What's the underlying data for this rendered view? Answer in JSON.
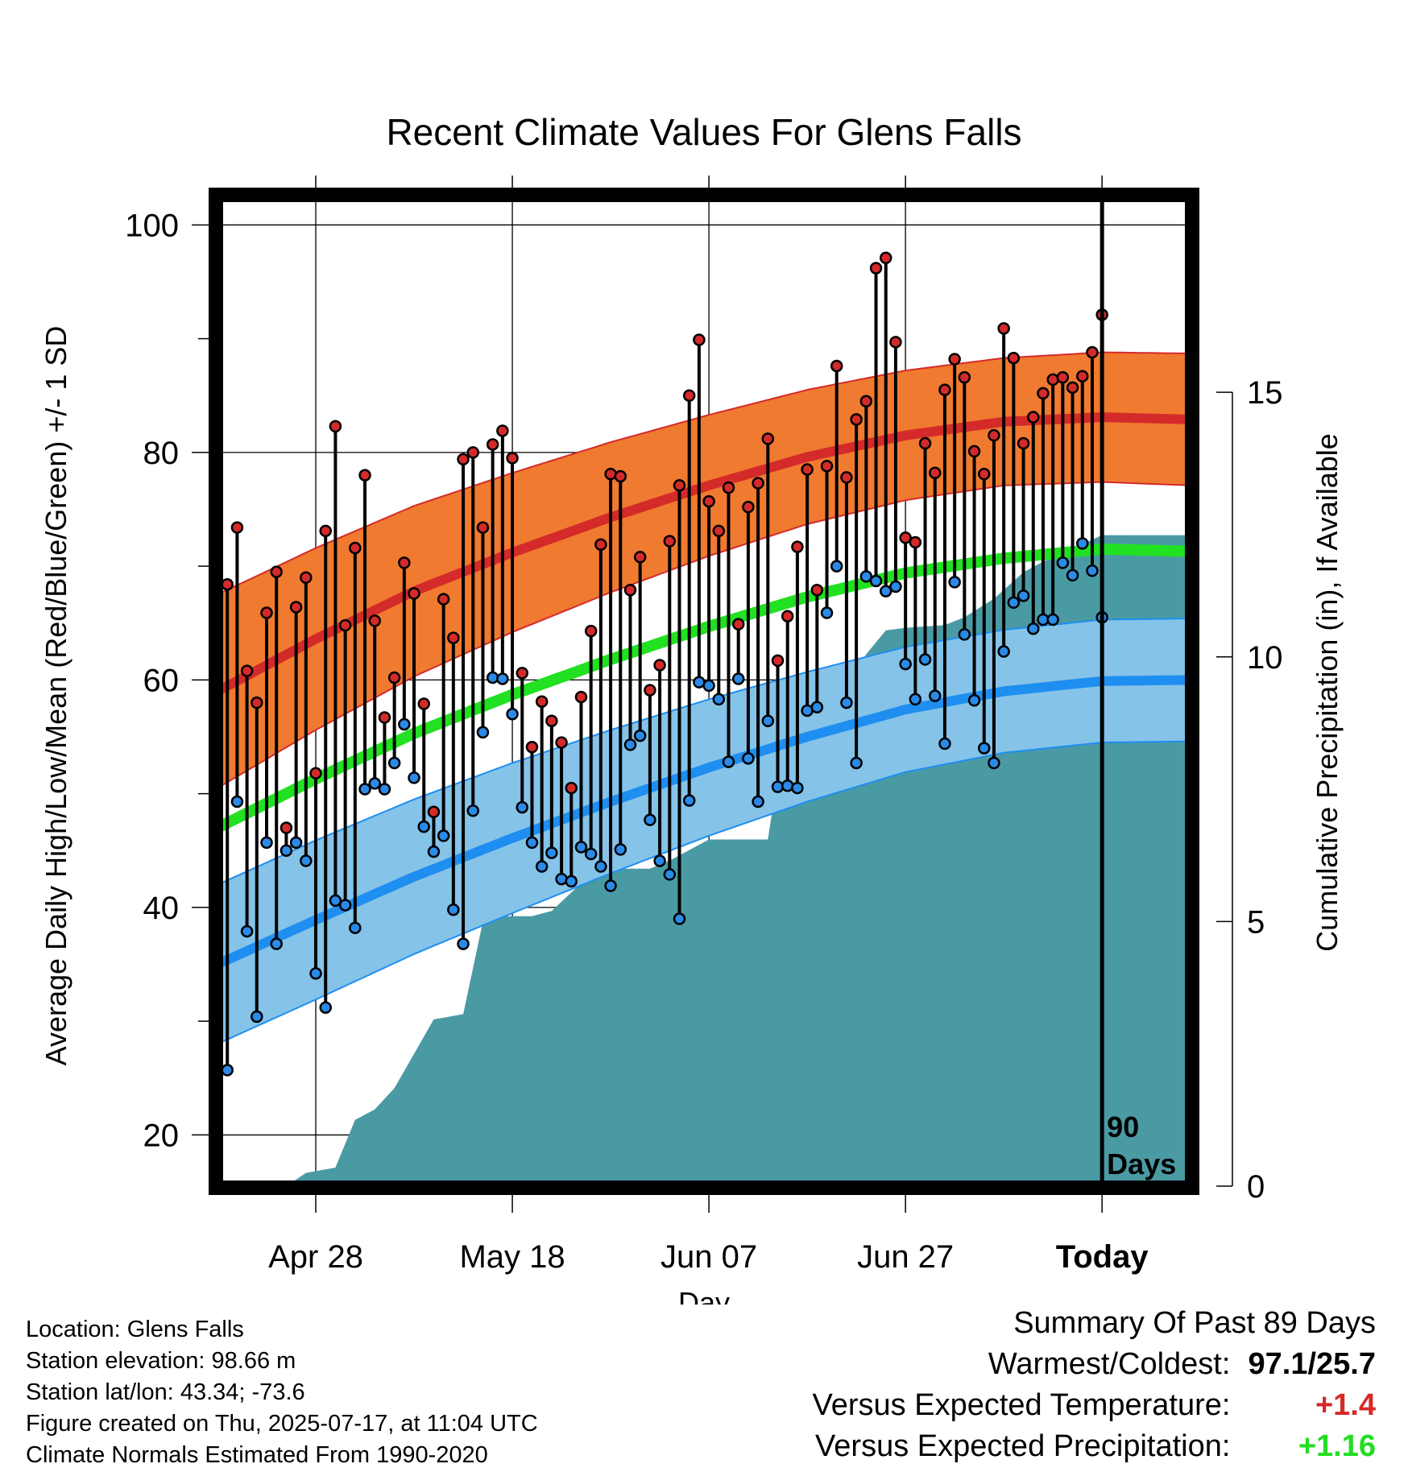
{
  "title": "Recent Climate Values For Glens Falls",
  "y_label": "Average Daily High/Low/Mean (Red/Blue/Green) +/- 1 SD",
  "y2_label": "Cumulative Precipitation (in), If Available",
  "x_label": "Day",
  "x_ticks": [
    "Apr 28",
    "May 18",
    "Jun 07",
    "Jun 27",
    "Today"
  ],
  "y_ticks": [
    "20",
    "40",
    "60",
    "80",
    "100"
  ],
  "y2_ticks": [
    "0",
    "5",
    "10",
    "15"
  ],
  "today_marker": {
    "line1": "90",
    "line2": "Days"
  },
  "footer_left": {
    "location": "Location: Glens Falls",
    "elevation": "Station elevation: 98.66 m",
    "latlon": "Station lat/lon: 43.34; -73.6",
    "created": "Figure created on Thu, 2025-07-17, at 11:04 UTC",
    "normals": "Climate Normals Estimated From 1990-2020"
  },
  "summary": {
    "heading": "Summary Of Past 89 Days",
    "warmest_coldest_label": "Warmest/Coldest:",
    "warmest_coldest_value": "97.1/25.7",
    "temp_label": "Versus Expected Temperature:",
    "temp_value": "+1.4",
    "precip_label": "Versus Expected Precipitation:",
    "precip_value": "+1.16"
  },
  "colors": {
    "high_band": "#f07a30",
    "high_line": "#d42a2a",
    "low_band": "#85c3e8",
    "low_line": "#1e8ef0",
    "mean_line": "#22e022",
    "precip_fill": "#4a9aa4",
    "high_dot": "#d42a2a",
    "low_dot": "#2a8ae8",
    "summary_temp": "#d42a2a",
    "summary_precip": "#22dd22"
  },
  "chart_data": {
    "type": "line",
    "x_day_offset_range": [
      -90,
      9
    ],
    "today_offset": 0,
    "x_tick_offsets": [
      -80,
      -60,
      -40,
      -20,
      0
    ],
    "ylim": [
      15.5,
      102.5
    ],
    "y2lim": [
      0,
      18.7
    ],
    "normals": {
      "day_offsets": [
        -90,
        -80,
        -70,
        -60,
        -50,
        -40,
        -30,
        -20,
        -10,
        0,
        9
      ],
      "high_mean": [
        59.0,
        63.6,
        67.8,
        71.2,
        74.3,
        77.1,
        79.6,
        81.5,
        82.7,
        83.1,
        82.9
      ],
      "high_sd": [
        8.5,
        8.0,
        7.5,
        7.0,
        6.6,
        6.2,
        5.9,
        5.7,
        5.6,
        5.7,
        5.8
      ],
      "low_mean": [
        35.0,
        38.9,
        42.7,
        46.1,
        49.3,
        52.3,
        55.0,
        57.4,
        59.0,
        59.9,
        60.0
      ],
      "low_sd": [
        7.0,
        7.0,
        6.8,
        6.6,
        6.3,
        6.0,
        5.7,
        5.5,
        5.4,
        5.4,
        5.4
      ],
      "mean": [
        47.0,
        51.3,
        55.3,
        58.7,
        61.8,
        64.7,
        67.3,
        69.4,
        70.7,
        71.5,
        71.3
      ]
    },
    "daily": {
      "start_offset": -89,
      "highs": [
        68.4,
        73.4,
        60.8,
        58.0,
        65.9,
        69.5,
        47.0,
        66.4,
        69.0,
        51.8,
        73.1,
        82.3,
        64.8,
        71.6,
        78.0,
        65.2,
        56.7,
        60.2,
        70.3,
        67.6,
        57.9,
        48.4,
        67.1,
        63.7,
        79.4,
        80.0,
        73.4,
        80.7,
        81.9,
        79.5,
        60.6,
        54.1,
        58.1,
        56.4,
        54.5,
        50.5,
        58.5,
        64.3,
        71.9,
        78.1,
        77.9,
        67.9,
        70.8,
        59.1,
        61.3,
        72.2,
        77.1,
        85.0,
        89.9,
        75.7,
        73.1,
        76.9,
        64.9,
        75.2,
        77.3,
        81.2,
        61.7,
        65.6,
        71.7,
        78.5,
        67.9,
        78.8,
        87.6,
        77.8,
        82.9,
        84.5,
        96.2,
        97.1,
        89.7,
        72.5,
        72.1,
        80.8,
        78.2,
        85.5,
        88.2,
        86.6,
        80.1,
        78.1,
        81.5,
        90.9,
        88.3,
        80.8,
        83.1,
        85.2,
        86.4,
        86.6,
        85.7,
        86.7,
        88.8,
        92.1
      ],
      "lows": [
        25.7,
        49.3,
        37.9,
        30.4,
        45.7,
        36.8,
        45.0,
        45.7,
        44.1,
        34.2,
        31.2,
        40.6,
        40.2,
        38.2,
        50.4,
        50.9,
        50.4,
        52.7,
        56.1,
        51.4,
        47.1,
        44.9,
        46.3,
        39.8,
        36.8,
        48.5,
        55.4,
        60.2,
        60.1,
        57.0,
        48.8,
        45.7,
        43.6,
        44.8,
        42.5,
        42.3,
        45.3,
        44.7,
        43.6,
        41.9,
        45.1,
        54.3,
        55.1,
        47.7,
        44.1,
        42.9,
        39.0,
        49.4,
        59.8,
        59.5,
        58.3,
        52.8,
        60.1,
        53.1,
        49.3,
        56.4,
        50.6,
        50.7,
        50.5,
        57.3,
        57.6,
        65.9,
        70.0,
        58.0,
        52.7,
        69.1,
        68.7,
        67.8,
        68.2,
        61.4,
        58.3,
        61.8,
        58.6,
        54.4,
        68.6,
        64.0,
        58.2,
        54.0,
        52.7,
        62.5,
        66.8,
        67.4,
        64.5,
        65.3,
        65.3,
        70.3,
        69.2,
        72.0,
        69.6,
        65.5
      ]
    },
    "precip": {
      "day_offsets": [
        -89,
        -83,
        -81,
        -78,
        -76,
        -74,
        -72,
        -70,
        -68,
        -65,
        -63,
        -62,
        -58,
        -56,
        -52,
        -50,
        -46,
        -44,
        -40,
        -38,
        -34,
        -32,
        -29,
        -27,
        -24,
        -22,
        -20,
        -16,
        -14,
        -11,
        -8,
        -6,
        0,
        9
      ],
      "cumulative": [
        0.0,
        0.0,
        0.25,
        0.35,
        1.25,
        1.45,
        1.85,
        2.5,
        3.15,
        3.25,
        5.0,
        5.1,
        5.1,
        5.2,
        5.9,
        6.0,
        6.0,
        6.15,
        6.55,
        6.55,
        6.55,
        8.95,
        9.05,
        9.05,
        10.05,
        10.5,
        10.55,
        10.6,
        10.75,
        11.1,
        11.6,
        11.8,
        12.3,
        12.3
      ]
    }
  }
}
